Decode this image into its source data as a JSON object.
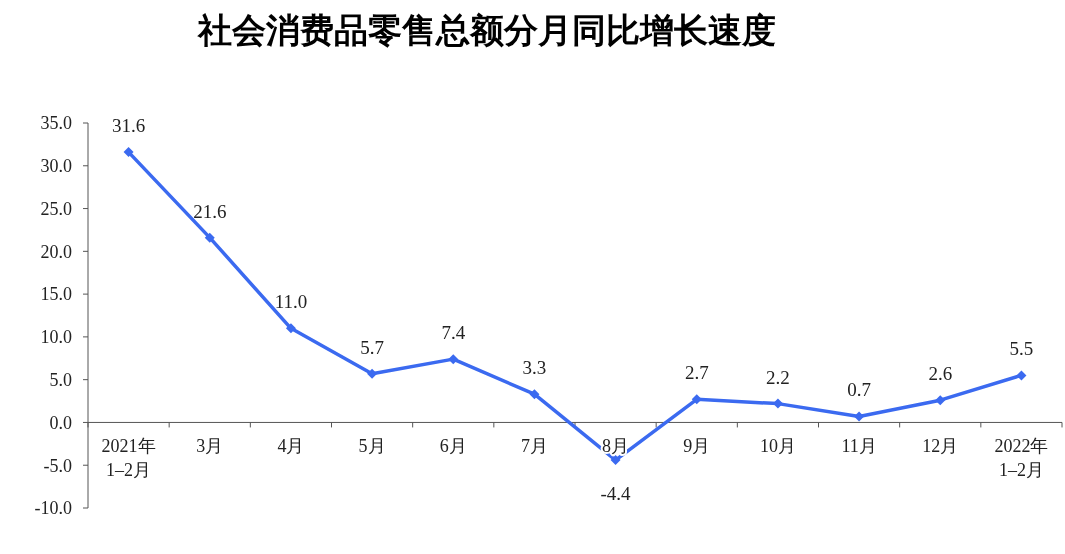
{
  "chart_data": {
    "type": "line",
    "title": "社会消费品零售总额分月同比增长速度",
    "categories": [
      "2021年\n1–2月",
      "3月",
      "4月",
      "5月",
      "6月",
      "7月",
      "8月",
      "9月",
      "10月",
      "11月",
      "12月",
      "2022年\n1–2月"
    ],
    "series": [
      {
        "color": "#3b6af0",
        "values": [
          31.6,
          21.6,
          11.0,
          5.7,
          7.4,
          3.3,
          -4.4,
          2.7,
          2.2,
          0.7,
          2.6,
          5.5
        ]
      }
    ],
    "ylim": [
      -10,
      35
    ],
    "yticks": [
      {
        "value": -10,
        "label": "-10.0"
      },
      {
        "value": -5,
        "label": "-5.0"
      },
      {
        "value": 0,
        "label": "0.0"
      },
      {
        "value": 5,
        "label": "5.0"
      },
      {
        "value": 10,
        "label": "10.0"
      },
      {
        "value": 15,
        "label": "15.0"
      },
      {
        "value": 20,
        "label": "20.0"
      },
      {
        "value": 25,
        "label": "25.0"
      },
      {
        "value": 30,
        "label": "30.0"
      },
      {
        "value": 35,
        "label": "35.0"
      }
    ],
    "value_labels": [
      "31.6",
      "21.6",
      "11.0",
      "5.7",
      "7.4",
      "3.3",
      "-4.4",
      "2.7",
      "2.2",
      "0.7",
      "2.6",
      "5.5"
    ],
    "marker": "diamond",
    "line_style": "solid",
    "grid": false
  }
}
